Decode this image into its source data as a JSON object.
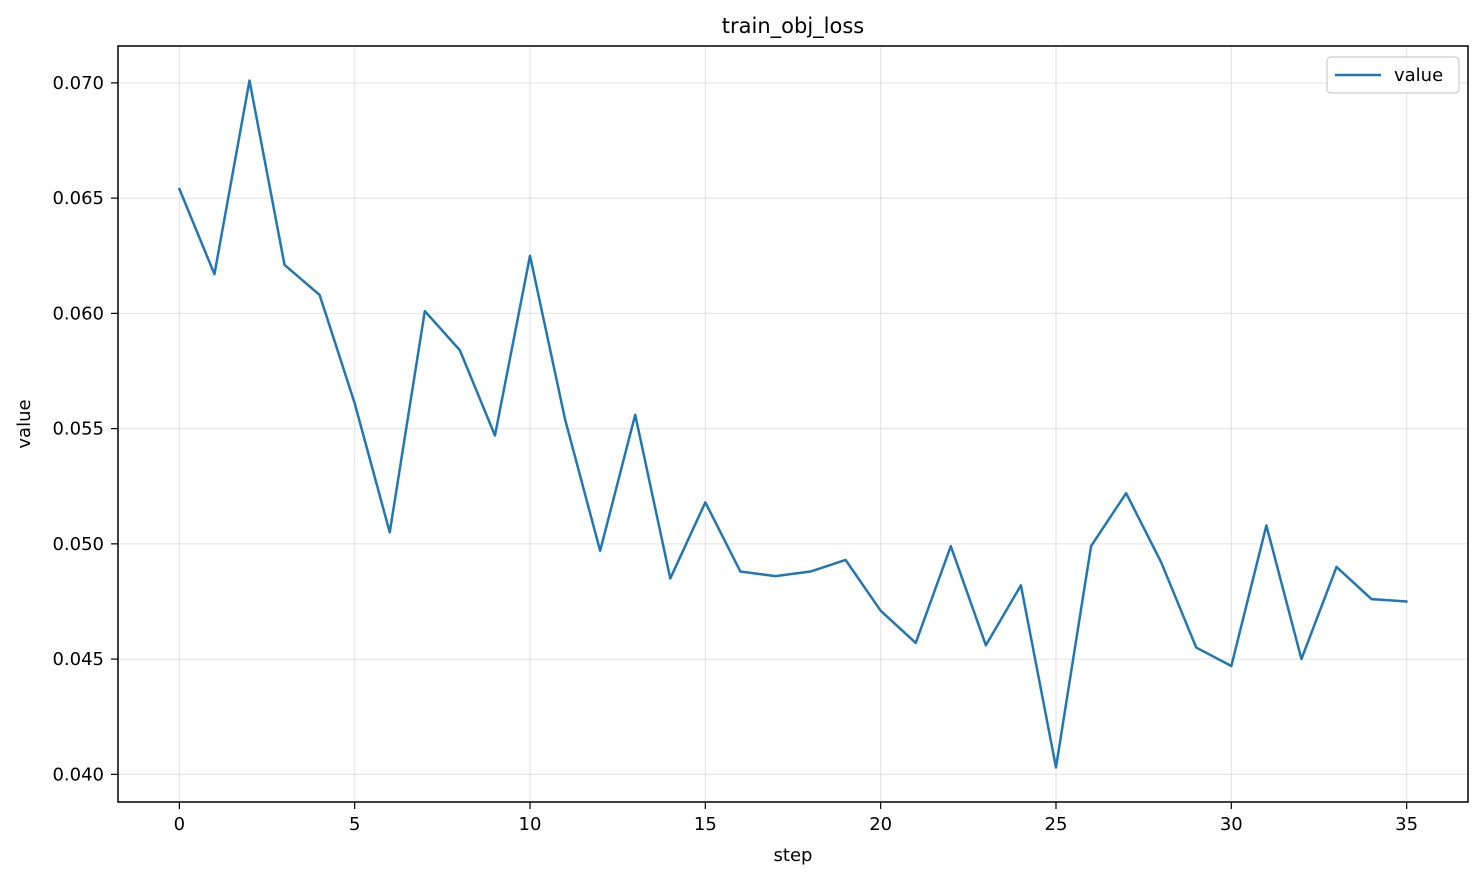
{
  "chart_data": {
    "type": "line",
    "title": "train_obj_loss",
    "xlabel": "step",
    "ylabel": "value",
    "xlim": [
      -1.75,
      36.75
    ],
    "ylim": [
      0.0388,
      0.0716
    ],
    "xticks": [
      0,
      5,
      10,
      15,
      20,
      25,
      30,
      35
    ],
    "xtick_labels": [
      "0",
      "5",
      "10",
      "15",
      "20",
      "25",
      "30",
      "35"
    ],
    "yticks": [
      0.04,
      0.045,
      0.05,
      0.055,
      0.06,
      0.065,
      0.07
    ],
    "ytick_labels": [
      "0.040",
      "0.045",
      "0.050",
      "0.055",
      "0.060",
      "0.065",
      "0.070"
    ],
    "grid": true,
    "legend_position": "top-right",
    "x": [
      0,
      1,
      2,
      3,
      4,
      5,
      6,
      7,
      8,
      9,
      10,
      11,
      12,
      13,
      14,
      15,
      16,
      17,
      18,
      19,
      20,
      21,
      22,
      23,
      24,
      25,
      26,
      27,
      28,
      29,
      30,
      31,
      32,
      33,
      34,
      35
    ],
    "series": [
      {
        "name": "value",
        "color": "#1f77b4",
        "values": [
          0.0654,
          0.0617,
          0.0701,
          0.0621,
          0.0608,
          0.0561,
          0.0505,
          0.0601,
          0.0584,
          0.0547,
          0.0625,
          0.0554,
          0.0497,
          0.0556,
          0.0485,
          0.0518,
          0.0488,
          0.0486,
          0.0488,
          0.0493,
          0.0471,
          0.0457,
          0.0499,
          0.0456,
          0.0482,
          0.0403,
          0.0499,
          0.0522,
          0.0492,
          0.0455,
          0.0447,
          0.0508,
          0.045,
          0.049,
          0.0476,
          0.0475
        ]
      }
    ]
  }
}
